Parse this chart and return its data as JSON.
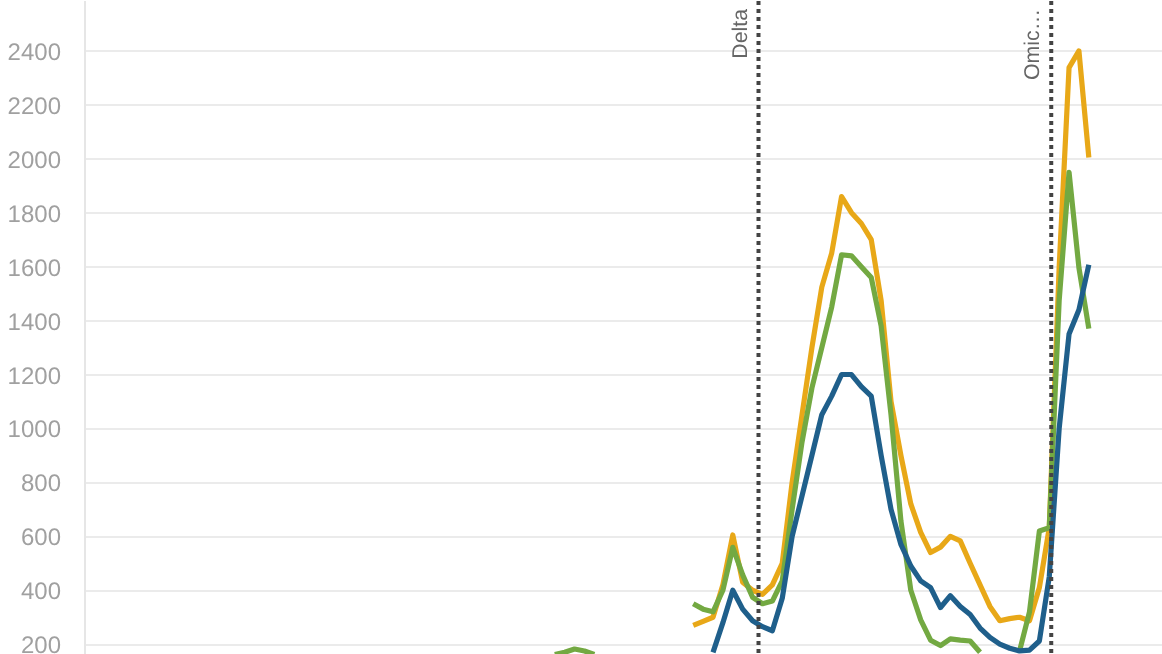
{
  "chart_data": {
    "type": "line",
    "tick_labels": "y",
    "grid": "y",
    "line_style": "solid",
    "ylim": [
      160,
      2585
    ],
    "yticks": [
      200,
      400,
      600,
      800,
      1000,
      1200,
      1400,
      1600,
      1800,
      2000,
      2200,
      2400
    ],
    "categories": [
      null,
      null,
      null,
      null,
      null,
      null,
      null,
      null,
      null,
      null,
      null,
      null,
      null,
      null,
      null,
      null,
      null,
      null,
      null,
      null,
      null,
      null,
      null,
      null,
      null,
      null,
      null,
      null,
      null,
      null,
      null,
      null,
      null,
      null,
      null,
      null,
      null,
      null,
      null,
      null,
      null,
      null,
      null,
      null,
      null,
      null,
      null,
      null,
      null,
      null,
      null,
      null,
      null,
      null,
      null,
      null,
      null,
      null,
      null,
      null,
      null,
      null,
      null,
      null,
      null,
      null,
      null,
      null,
      null,
      null,
      null,
      null,
      null,
      null,
      null,
      null,
      null,
      null,
      null,
      null,
      null,
      null,
      null,
      null,
      null,
      null,
      null,
      null,
      null,
      null,
      null,
      null,
      null,
      null,
      null,
      null,
      null,
      null,
      null,
      null,
      null,
      null,
      null,
      null,
      null,
      null,
      null,
      null,
      null
    ],
    "series": [
      {
        "color": "#e8a818",
        "values": [
          null,
          null,
          null,
          null,
          null,
          null,
          null,
          null,
          null,
          null,
          null,
          null,
          null,
          null,
          null,
          null,
          null,
          null,
          null,
          null,
          null,
          null,
          null,
          null,
          null,
          null,
          null,
          null,
          null,
          null,
          null,
          null,
          null,
          null,
          null,
          null,
          null,
          null,
          null,
          null,
          null,
          null,
          null,
          null,
          null,
          null,
          null,
          null,
          null,
          null,
          null,
          null,
          null,
          null,
          null,
          null,
          null,
          null,
          null,
          null,
          null,
          270,
          285,
          300,
          420,
          605,
          430,
          400,
          385,
          420,
          500,
          800,
          1050,
          1300,
          1524,
          1650,
          1860,
          1800,
          1760,
          1700,
          1474,
          1100,
          900,
          720,
          615,
          540,
          560,
          600,
          583,
          500,
          420,
          340,
          287,
          295,
          300,
          287,
          410,
          632,
          1596,
          2338,
          2400,
          2005,
          null,
          null,
          null,
          null,
          null,
          null,
          null
        ]
      },
      {
        "color": "#73a942",
        "values": [
          null,
          null,
          null,
          null,
          null,
          null,
          null,
          null,
          null,
          null,
          null,
          null,
          null,
          null,
          null,
          null,
          null,
          null,
          null,
          null,
          null,
          null,
          null,
          null,
          null,
          null,
          null,
          null,
          null,
          null,
          null,
          null,
          null,
          null,
          null,
          null,
          null,
          null,
          null,
          null,
          null,
          null,
          null,
          null,
          null,
          null,
          null,
          null,
          null,
          null,
          null,
          null,
          null,
          null,
          null,
          null,
          null,
          null,
          null,
          null,
          null,
          350,
          330,
          320,
          400,
          559,
          457,
          374,
          350,
          360,
          435,
          700,
          950,
          1150,
          1300,
          1450,
          1644,
          1640,
          1600,
          1560,
          1380,
          1051,
          657,
          400,
          290,
          215,
          195,
          220,
          215,
          212,
          170,
          null,
          null,
          null,
          175,
          320,
          620,
          632,
          1474,
          1950,
          1596,
          1370,
          null,
          null,
          null,
          null,
          null,
          null,
          null
        ]
      },
      {
        "color": "#73a942",
        "values": [
          null,
          null,
          null,
          null,
          null,
          null,
          null,
          null,
          null,
          null,
          null,
          null,
          null,
          null,
          null,
          null,
          null,
          null,
          null,
          null,
          null,
          null,
          null,
          null,
          null,
          null,
          null,
          null,
          null,
          null,
          null,
          null,
          null,
          null,
          null,
          null,
          null,
          null,
          null,
          null,
          null,
          null,
          null,
          null,
          null,
          null,
          null,
          162,
          170,
          182,
          175,
          162,
          null,
          null,
          null,
          null,
          null,
          null,
          null,
          null,
          null,
          null,
          null,
          null,
          null,
          null,
          null,
          null,
          null,
          null,
          null,
          null,
          null,
          null,
          null,
          null,
          null,
          null,
          null,
          null,
          null,
          null,
          null,
          null,
          null,
          null,
          null,
          null,
          null,
          null,
          null,
          null,
          null,
          null,
          null,
          null,
          null,
          null,
          null,
          null,
          null,
          null,
          null,
          null,
          null,
          null,
          null,
          null,
          null
        ]
      },
      {
        "color": "#1f5f8b",
        "values": [
          null,
          null,
          null,
          null,
          null,
          null,
          null,
          null,
          null,
          null,
          null,
          null,
          null,
          null,
          null,
          null,
          null,
          null,
          null,
          null,
          null,
          null,
          null,
          null,
          null,
          null,
          null,
          null,
          null,
          null,
          null,
          null,
          null,
          null,
          null,
          null,
          null,
          null,
          null,
          null,
          null,
          null,
          null,
          null,
          null,
          null,
          null,
          null,
          null,
          null,
          null,
          null,
          null,
          null,
          null,
          null,
          null,
          null,
          null,
          null,
          null,
          null,
          null,
          170,
          280,
          400,
          330,
          287,
          265,
          250,
          370,
          600,
          750,
          900,
          1051,
          1120,
          1200,
          1200,
          1155,
          1120,
          900,
          700,
          570,
          490,
          435,
          410,
          336,
          380,
          340,
          310,
          260,
          225,
          200,
          185,
          175,
          178,
          212,
          450,
          1000,
          1350,
          1440,
          1607,
          null,
          null,
          null,
          null,
          null,
          null,
          null
        ]
      }
    ],
    "annotations": [
      "Delta",
      "Omic…"
    ]
  }
}
